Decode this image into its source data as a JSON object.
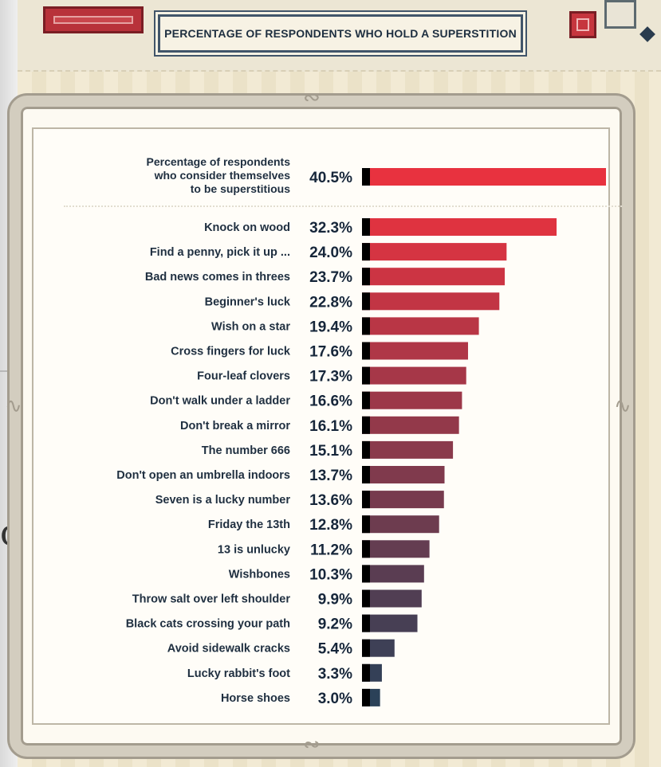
{
  "title": "PERCENTAGE OF RESPONDENTS WHO HOLD A SUPERSTITION",
  "colors": {
    "bar_top": "#e8323f",
    "bar_bottom": "#2b4158",
    "label_text": "#1f2f40",
    "value_text": "#16263a",
    "title_border": "#41556a"
  },
  "chart_data": {
    "type": "bar",
    "orientation": "horizontal",
    "title": "PERCENTAGE OF RESPONDENTS WHO HOLD A SUPERSTITION",
    "categories": [
      "Percentage of respondents who consider themselves to be superstitious",
      "Knock on wood",
      "Find a penny, pick it up ...",
      "Bad news comes in threes",
      "Beginner's luck",
      "Wish on a star",
      "Cross fingers for luck",
      "Four-leaf clovers",
      "Don't walk under a ladder",
      "Don't break a mirror",
      "The number 666",
      "Don't open an umbrella indoors",
      "Seven is a lucky number",
      "Friday the 13th",
      "13 is unlucky",
      "Wishbones",
      "Throw salt over left shoulder",
      "Black cats crossing your path",
      "Avoid sidewalk cracks",
      "Lucky rabbit's foot",
      "Horse shoes"
    ],
    "values": [
      40.5,
      32.3,
      24.0,
      23.7,
      22.8,
      19.4,
      17.6,
      17.3,
      16.6,
      16.1,
      15.1,
      13.7,
      13.6,
      12.8,
      11.2,
      10.3,
      9.9,
      9.2,
      5.4,
      3.3,
      3.0
    ],
    "value_labels": [
      "40.5%",
      "32.3%",
      "24.0%",
      "23.7%",
      "22.8%",
      "19.4%",
      "17.6%",
      "17.3%",
      "16.6%",
      "16.1%",
      "15.1%",
      "13.7%",
      "13.6%",
      "12.8%",
      "11.2%",
      "10.3%",
      "9.9%",
      "9.2%",
      "5.4%",
      "3.3%",
      "3.0%"
    ],
    "label_lines_first": [
      "Percentage of respondents",
      "who consider themselves",
      "to be superstitious"
    ],
    "xlim": [
      0,
      40.5
    ],
    "grid": false,
    "legend": "none"
  }
}
